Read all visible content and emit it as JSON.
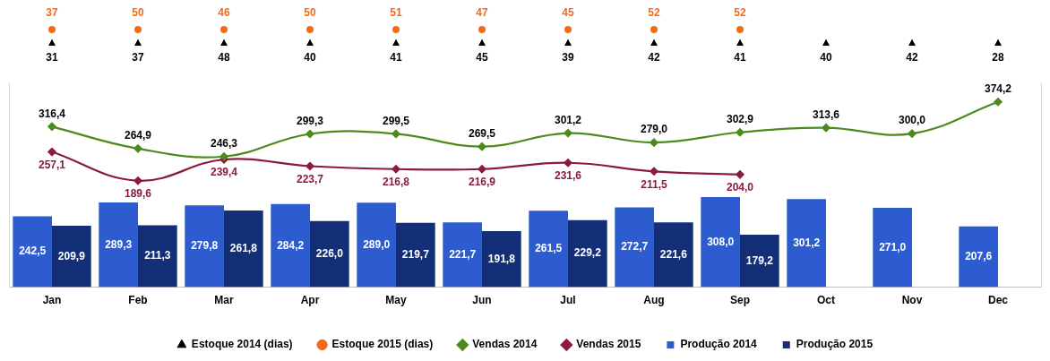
{
  "chart_data": {
    "type": "combo",
    "categories": [
      "Jan",
      "Feb",
      "Mar",
      "Apr",
      "May",
      "Jun",
      "Jul",
      "Aug",
      "Sep",
      "Oct",
      "Nov",
      "Dec"
    ],
    "ylim": [
      0,
      700
    ],
    "y2lim": [
      -60,
      420
    ],
    "grid": false,
    "legend": "bottom",
    "data_labels": true,
    "tick_labels": "x",
    "series": [
      {
        "name": "Produção 2014",
        "type": "bar",
        "color": "#2d5bd0",
        "values": [
          242.5,
          289.3,
          279.8,
          284.2,
          289.0,
          221.7,
          261.5,
          272.7,
          308.0,
          301.2,
          271.0,
          207.6
        ],
        "value_labels": [
          "242,5",
          "289,3",
          "279,8",
          "284,2",
          "289,0",
          "221,7",
          "261,5",
          "272,7",
          "308,0",
          "301,2",
          "271,0",
          "207,6"
        ]
      },
      {
        "name": "Produção 2015",
        "type": "bar",
        "color": "#132f78",
        "values": [
          209.9,
          211.3,
          261.8,
          226.0,
          219.7,
          191.8,
          229.2,
          221.6,
          179.2,
          null,
          null,
          null
        ],
        "value_labels": [
          "209,9",
          "211,3",
          "261,8",
          "226,0",
          "219,7",
          "191,8",
          "229,2",
          "221,6",
          "179,2",
          null,
          null,
          null
        ]
      },
      {
        "name": "Vendas 2014",
        "type": "line",
        "axis": "y2",
        "color": "#4b8b1d",
        "marker": "diamond",
        "line_style": "solid",
        "values": [
          316.4,
          264.9,
          246.3,
          299.3,
          299.5,
          269.5,
          301.2,
          279.0,
          302.9,
          313.6,
          300.0,
          374.2
        ],
        "value_labels": [
          "316,4",
          "264,9",
          "246,3",
          "299,3",
          "299,5",
          "269,5",
          "301,2",
          "279,0",
          "302,9",
          "313,6",
          "300,0",
          "374,2"
        ]
      },
      {
        "name": "Vendas 2015",
        "type": "line",
        "axis": "y2",
        "color": "#8c1a40",
        "marker": "diamond",
        "line_style": "solid",
        "values": [
          257.1,
          189.6,
          239.4,
          223.7,
          216.8,
          216.9,
          231.6,
          211.5,
          204.0,
          null,
          null,
          null
        ],
        "value_labels": [
          "257,1",
          "189,6",
          "239,4",
          "223,7",
          "216,8",
          "216,9",
          "231,6",
          "211,5",
          "204,0",
          null,
          null,
          null
        ]
      },
      {
        "name": "Estoque 2014 (dias)",
        "type": "row",
        "color": "#000000",
        "marker": "triangle",
        "values": [
          31,
          37,
          48,
          40,
          41,
          45,
          39,
          42,
          41,
          40,
          42,
          28
        ]
      },
      {
        "name": "Estoque 2015 (dias)",
        "type": "row",
        "color": "#f26b1d",
        "marker": "circle",
        "values": [
          37,
          50,
          46,
          50,
          51,
          47,
          45,
          52,
          52,
          null,
          null,
          null
        ]
      }
    ]
  }
}
